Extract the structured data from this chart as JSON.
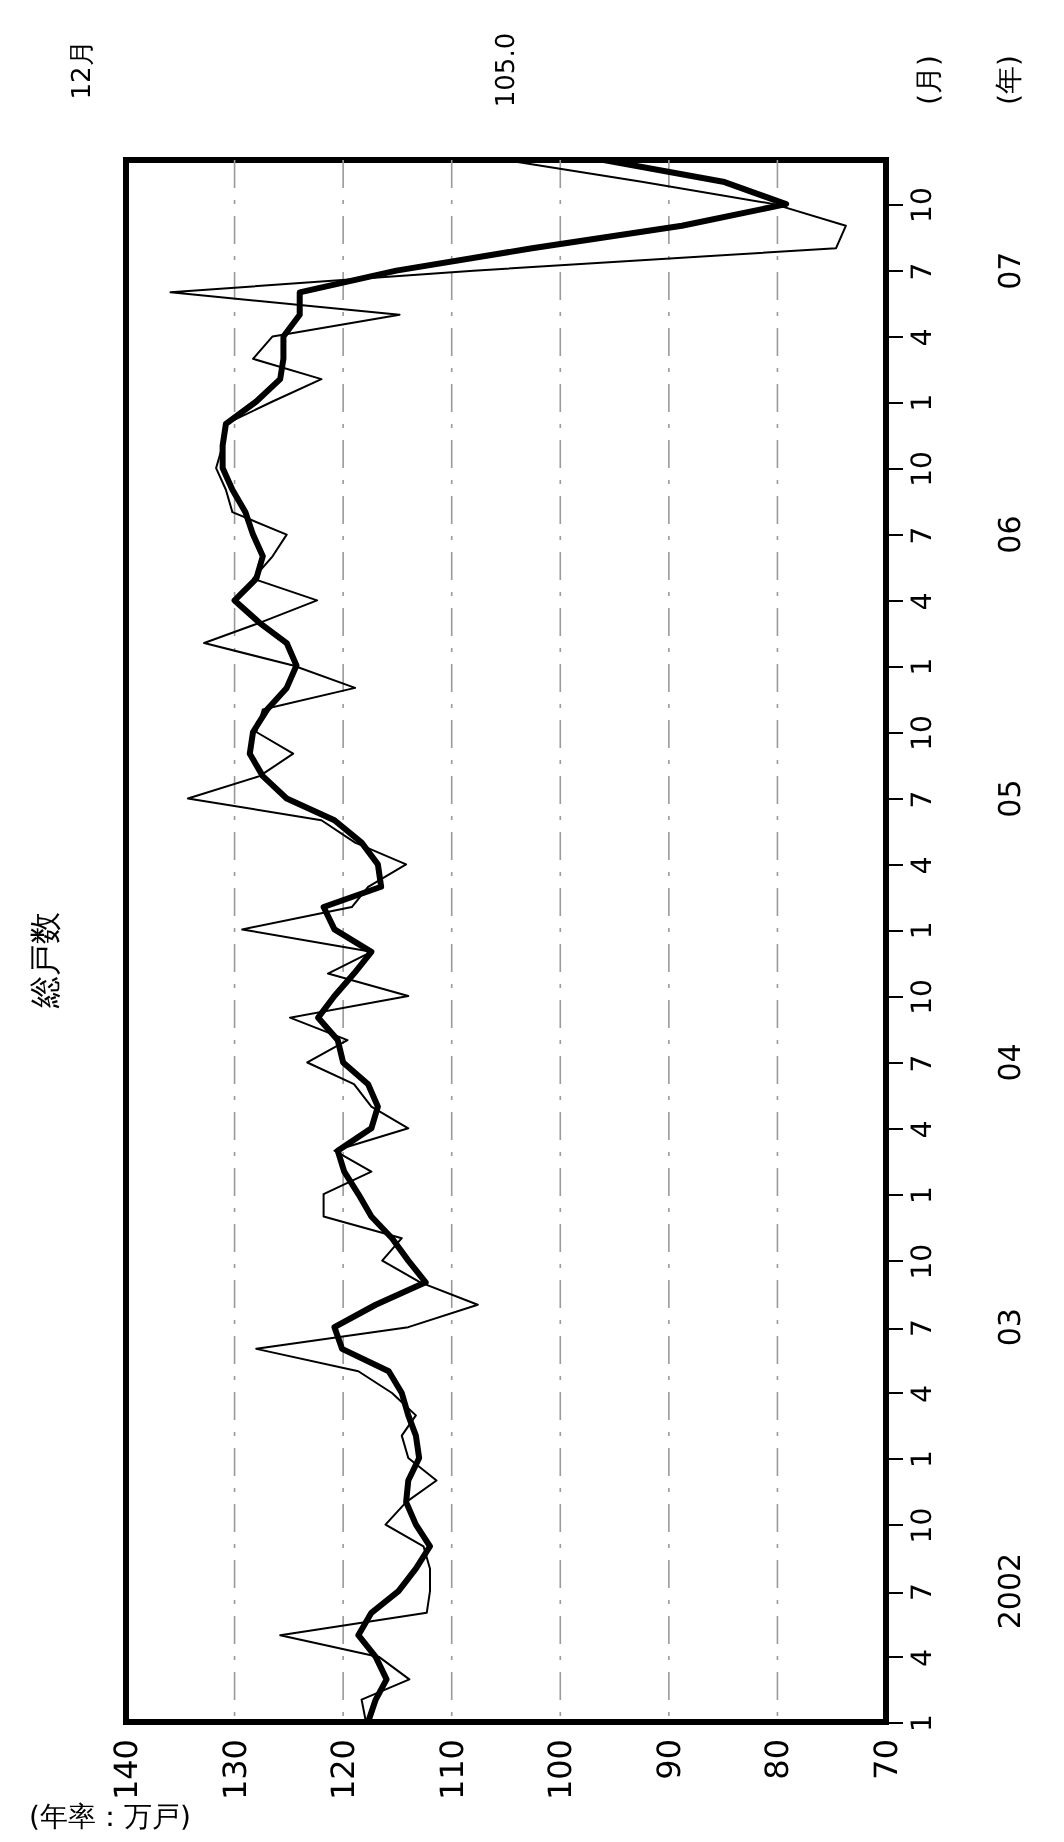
{
  "chart_data": {
    "type": "line",
    "orientation": "horizontal",
    "title": "総戸数",
    "xlabel": "(年率：万戸)",
    "ylabel": "(月)",
    "y2label": "(年)",
    "annotations": [
      "105.0",
      "12月"
    ],
    "x": [
      "2002-01",
      "2002-02",
      "2002-03",
      "2002-04",
      "2002-05",
      "2002-06",
      "2002-07",
      "2002-08",
      "2002-09",
      "2002-10",
      "2002-11",
      "2002-12",
      "2003-01",
      "2003-02",
      "2003-03",
      "2003-04",
      "2003-05",
      "2003-06",
      "2003-07",
      "2003-08",
      "2003-09",
      "2003-10",
      "2003-11",
      "2003-12",
      "2004-01",
      "2004-02",
      "2004-03",
      "2004-04",
      "2004-05",
      "2004-06",
      "2004-07",
      "2004-08",
      "2004-09",
      "2004-10",
      "2004-11",
      "2004-12",
      "2005-01",
      "2005-02",
      "2005-03",
      "2005-04",
      "2005-05",
      "2005-06",
      "2005-07",
      "2005-08",
      "2005-09",
      "2005-10",
      "2005-11",
      "2005-12",
      "2006-01",
      "2006-02",
      "2006-03",
      "2006-04",
      "2006-05",
      "2006-06",
      "2006-07",
      "2006-08",
      "2006-09",
      "2006-10",
      "2006-11",
      "2006-12",
      "2007-01",
      "2007-02",
      "2007-03",
      "2007-04",
      "2007-05",
      "2007-06",
      "2007-07",
      "2007-08",
      "2007-09",
      "2007-10",
      "2007-11",
      "2007-12"
    ],
    "series": [
      {
        "color": "#000000",
        "values": [
          117.9,
          118.3,
          113.9,
          116.7,
          125.8,
          112.3,
          112.0,
          112.0,
          112.6,
          116.1,
          114.2,
          111.4,
          114.0,
          114.6,
          113.3,
          115.5,
          118.6,
          128.0,
          114.0,
          107.6,
          112.9,
          116.4,
          114.6,
          121.8,
          121.8,
          117.4,
          120.8,
          114.0,
          117.4,
          119.0,
          123.3,
          119.6,
          124.9,
          114.0,
          121.4,
          117.4,
          129.3,
          119.2,
          117.7,
          114.2,
          118.9,
          122.0,
          134.3,
          127.7,
          124.6,
          128.0,
          127.4,
          118.9,
          124.6,
          132.8,
          127.7,
          122.4,
          128.3,
          126.5,
          125.2,
          130.2,
          130.8,
          131.7,
          131.1,
          130.8,
          126.5,
          122.0,
          128.3,
          126.5,
          114.8,
          135.9,
          108.0,
          74.6,
          73.7,
          80.3,
          92.5,
          105.1
        ]
      },
      {
        "color": "#000000",
        "values": [
          117.7,
          117.0,
          116.0,
          117.0,
          118.6,
          117.4,
          114.9,
          113.3,
          112.0,
          113.3,
          114.2,
          114.0,
          113.0,
          113.3,
          114.0,
          114.6,
          115.8,
          120.1,
          120.8,
          117.0,
          112.4,
          114.0,
          115.5,
          117.4,
          118.6,
          119.9,
          120.5,
          117.4,
          116.8,
          117.7,
          120.0,
          120.5,
          122.3,
          120.8,
          119.0,
          117.4,
          120.8,
          121.8,
          116.5,
          116.8,
          118.3,
          120.8,
          125.2,
          127.4,
          128.6,
          128.3,
          127.0,
          125.2,
          124.3,
          125.2,
          127.7,
          130.0,
          128.0,
          127.4,
          128.3,
          129.0,
          130.2,
          131.1,
          131.1,
          130.8,
          128.0,
          125.8,
          125.5,
          125.5,
          124.0,
          124.0,
          115.1,
          102.6,
          88.8,
          79.2,
          85.0,
          96.0
        ]
      }
    ],
    "ylim": [
      "2002-01",
      "2007-12"
    ],
    "yticks": [
      {
        "value": "2002-01",
        "label": "1"
      },
      {
        "value": "2002-04",
        "label": "4"
      },
      {
        "value": "2002-07",
        "label": "7"
      },
      {
        "value": "2002-10",
        "label": "10"
      },
      {
        "value": "2003-01",
        "label": "1"
      },
      {
        "value": "2003-04",
        "label": "4"
      },
      {
        "value": "2003-07",
        "label": "7"
      },
      {
        "value": "2003-10",
        "label": "10"
      },
      {
        "value": "2004-01",
        "label": "1"
      },
      {
        "value": "2004-04",
        "label": "4"
      },
      {
        "value": "2004-07",
        "label": "7"
      },
      {
        "value": "2004-10",
        "label": "10"
      },
      {
        "value": "2005-01",
        "label": "1"
      },
      {
        "value": "2005-04",
        "label": "4"
      },
      {
        "value": "2005-07",
        "label": "7"
      },
      {
        "value": "2005-10",
        "label": "10"
      },
      {
        "value": "2006-01",
        "label": "1"
      },
      {
        "value": "2006-04",
        "label": "4"
      },
      {
        "value": "2006-07",
        "label": "7"
      },
      {
        "value": "2006-10",
        "label": "10"
      },
      {
        "value": "2007-01",
        "label": "1"
      },
      {
        "value": "2007-04",
        "label": "4"
      },
      {
        "value": "2007-07",
        "label": "7"
      },
      {
        "value": "2007-10",
        "label": "10"
      }
    ],
    "y2lim": [
      "2002-01",
      "2007-12"
    ],
    "y2ticks": [
      {
        "value": "2002-07",
        "label": "2002"
      },
      {
        "value": "2003-07",
        "label": "03"
      },
      {
        "value": "2004-07",
        "label": "04"
      },
      {
        "value": "2005-07",
        "label": "05"
      },
      {
        "value": "2006-07",
        "label": "06"
      },
      {
        "value": "2007-07",
        "label": "07"
      }
    ],
    "xlim": [
      140,
      70
    ],
    "xticks": [
      140,
      130,
      120,
      110,
      100,
      90,
      80,
      70
    ],
    "grid": "x",
    "line_style": "solid",
    "marker": "none"
  }
}
